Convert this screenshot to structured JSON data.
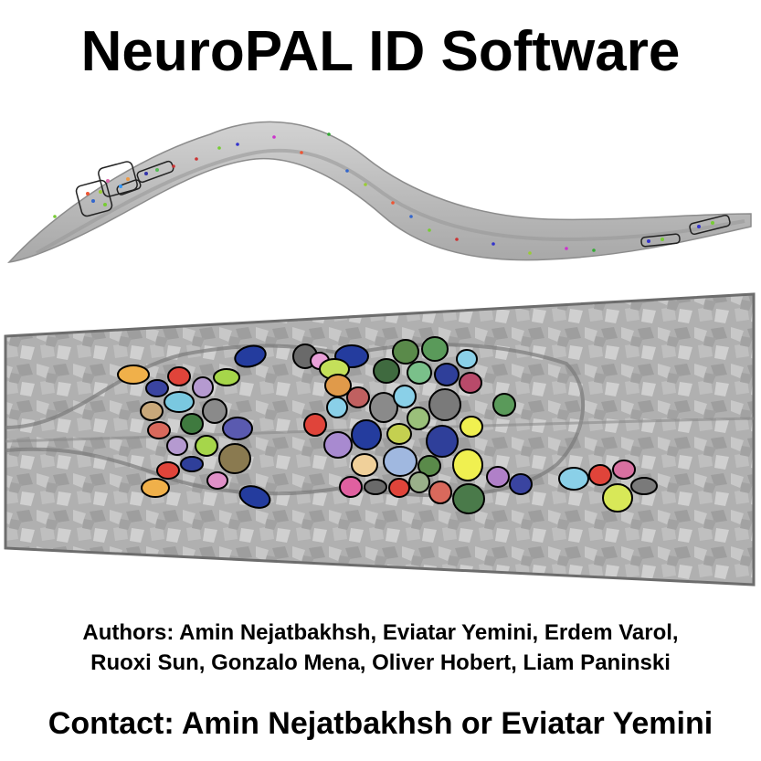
{
  "title": "NeuroPAL ID Software",
  "authors": {
    "line1": "Authors: Amin Nejatbakhsh, Eviatar Yemini, Erdem Varol,",
    "line2": "Ruoxi Sun, Gonzalo Mena, Oliver Hobert, Liam Paninski"
  },
  "contact": "Contact: Amin Nejatbakhsh or Eviatar Yemini",
  "colors": {
    "worm_body": "#bdbdbd",
    "worm_edge": "#8c8c8c",
    "closeup_bg": "#a9a9a9",
    "neuron_outline": "#000000"
  }
}
